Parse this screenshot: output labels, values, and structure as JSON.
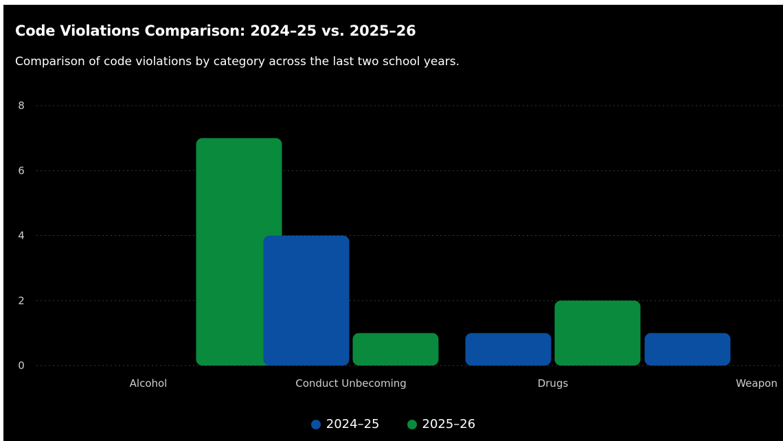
{
  "chart_data": {
    "type": "bar",
    "title": "Code Violations Comparison: 2024–25 vs. 2025–26",
    "subtitle": "Comparison of code violations by category across the last two school years.",
    "categories": [
      "Alcohol",
      "Conduct Unbecoming",
      "Drugs",
      "Weapon"
    ],
    "series": [
      {
        "name": "2024–25",
        "color": "#0a4fa1",
        "values": [
          0,
          4,
          1,
          1
        ]
      },
      {
        "name": "2025–26",
        "color": "#0a8a3c",
        "values": [
          7,
          1,
          2,
          0
        ]
      }
    ],
    "yticks": [
      0,
      2,
      4,
      6,
      8
    ],
    "ylim": [
      0,
      8
    ],
    "xlabel": "",
    "ylabel": "",
    "grid": true,
    "legend_position": "bottom-center"
  },
  "colors": {
    "background": "#000000",
    "text": "#ffffff",
    "tick_text": "#cfcfcf",
    "grid": "#3a3a3a"
  }
}
